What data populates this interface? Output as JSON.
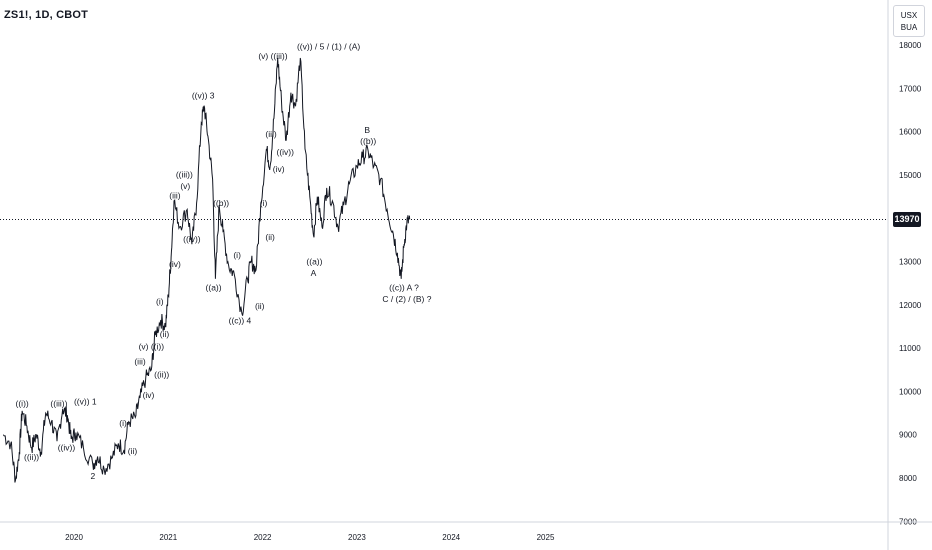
{
  "header": {
    "symbol": "ZS1!, 1D, CBOT"
  },
  "scale_box": {
    "line1": "USX",
    "line2": "BUA"
  },
  "last_price_label": "13970",
  "colors": {
    "price_line": "#131722",
    "crosshair": "#131722",
    "axis": "#d1d4dc",
    "tag_bg": "#131722"
  },
  "chart_data": {
    "type": "line",
    "title": "ZS1!, 1D, CBOT",
    "xlabel": "",
    "ylabel": "",
    "x_ticks": [
      {
        "label": "2020",
        "t": 2020.0
      },
      {
        "label": "2021",
        "t": 2021.0
      },
      {
        "label": "2022",
        "t": 2022.0
      },
      {
        "label": "2023",
        "t": 2023.0
      },
      {
        "label": "2024",
        "t": 2024.0
      },
      {
        "label": "2025",
        "t": 2025.0
      }
    ],
    "y_ticks": [
      {
        "label": "7000",
        "v": 7000
      },
      {
        "label": "8000",
        "v": 8000
      },
      {
        "label": "9000",
        "v": 9000
      },
      {
        "label": "10000",
        "v": 10000
      },
      {
        "label": "11000",
        "v": 11000
      },
      {
        "label": "12000",
        "v": 12000
      },
      {
        "label": "13000",
        "v": 13000
      },
      {
        "label": "14000",
        "v": 14000
      },
      {
        "label": "15000",
        "v": 15000
      },
      {
        "label": "16000",
        "v": 16000
      },
      {
        "label": "17000",
        "v": 17000
      },
      {
        "label": "18000",
        "v": 18000
      }
    ],
    "xlim": [
      2019.25,
      2025.8
    ],
    "ylim": [
      6900,
      18100
    ],
    "last_price": 13970,
    "series": [
      {
        "points": [
          [
            2019.25,
            9000
          ],
          [
            2019.33,
            8800
          ],
          [
            2019.38,
            7950
          ],
          [
            2019.42,
            8600
          ],
          [
            2019.45,
            9550
          ],
          [
            2019.5,
            9200
          ],
          [
            2019.55,
            8700
          ],
          [
            2019.6,
            9000
          ],
          [
            2019.65,
            8600
          ],
          [
            2019.7,
            9500
          ],
          [
            2019.76,
            9300
          ],
          [
            2019.82,
            8850
          ],
          [
            2019.88,
            9600
          ],
          [
            2019.93,
            9450
          ],
          [
            2019.97,
            8900
          ],
          [
            2020.02,
            9050
          ],
          [
            2020.1,
            8700
          ],
          [
            2020.2,
            8300
          ],
          [
            2020.25,
            8500
          ],
          [
            2020.32,
            8200
          ],
          [
            2020.4,
            8450
          ],
          [
            2020.47,
            8800
          ],
          [
            2020.53,
            8650
          ],
          [
            2020.58,
            9300
          ],
          [
            2020.65,
            9400
          ],
          [
            2020.7,
            9850
          ],
          [
            2020.76,
            10300
          ],
          [
            2020.82,
            10500
          ],
          [
            2020.86,
            11300
          ],
          [
            2020.92,
            11650
          ],
          [
            2020.97,
            11500
          ],
          [
            2021.0,
            12200
          ],
          [
            2021.03,
            13100
          ],
          [
            2021.06,
            14400
          ],
          [
            2021.12,
            13800
          ],
          [
            2021.2,
            14200
          ],
          [
            2021.25,
            13400
          ],
          [
            2021.3,
            14350
          ],
          [
            2021.35,
            16200
          ],
          [
            2021.38,
            16600
          ],
          [
            2021.42,
            15900
          ],
          [
            2021.47,
            14900
          ],
          [
            2021.5,
            12600
          ],
          [
            2021.54,
            14300
          ],
          [
            2021.58,
            13700
          ],
          [
            2021.64,
            12900
          ],
          [
            2021.7,
            12700
          ],
          [
            2021.78,
            11800
          ],
          [
            2021.84,
            12600
          ],
          [
            2021.88,
            13000
          ],
          [
            2021.93,
            12800
          ],
          [
            2021.98,
            14300
          ],
          [
            2022.04,
            15600
          ],
          [
            2022.08,
            15200
          ],
          [
            2022.12,
            16300
          ],
          [
            2022.16,
            17700
          ],
          [
            2022.2,
            16700
          ],
          [
            2022.25,
            15800
          ],
          [
            2022.3,
            16900
          ],
          [
            2022.35,
            16600
          ],
          [
            2022.4,
            17700
          ],
          [
            2022.45,
            15600
          ],
          [
            2022.5,
            14500
          ],
          [
            2022.54,
            13600
          ],
          [
            2022.58,
            14500
          ],
          [
            2022.63,
            13800
          ],
          [
            2022.68,
            14700
          ],
          [
            2022.74,
            14400
          ],
          [
            2022.8,
            13800
          ],
          [
            2022.86,
            14300
          ],
          [
            2022.92,
            14800
          ],
          [
            2023.0,
            15200
          ],
          [
            2023.06,
            15400
          ],
          [
            2023.12,
            15550
          ],
          [
            2023.18,
            15200
          ],
          [
            2023.25,
            14900
          ],
          [
            2023.32,
            14200
          ],
          [
            2023.38,
            13700
          ],
          [
            2023.43,
            13200
          ],
          [
            2023.47,
            12600
          ],
          [
            2023.5,
            13400
          ],
          [
            2023.53,
            13900
          ],
          [
            2023.56,
            13970
          ]
        ]
      }
    ],
    "annotations": [
      {
        "text": "((i))",
        "t": 2019.45,
        "v": 9650
      },
      {
        "text": "((ii))",
        "t": 2019.55,
        "v": 8420
      },
      {
        "text": "((iii))",
        "t": 2019.84,
        "v": 9650
      },
      {
        "text": "((iv))",
        "t": 2019.92,
        "v": 8640
      },
      {
        "text": "((v)) 1",
        "t": 2020.12,
        "v": 9700
      },
      {
        "text": "2",
        "t": 2020.2,
        "v": 7980
      },
      {
        "text": "(i)",
        "t": 2020.52,
        "v": 9200
      },
      {
        "text": "(ii)",
        "t": 2020.62,
        "v": 8560
      },
      {
        "text": "(iii)",
        "t": 2020.7,
        "v": 10620
      },
      {
        "text": "(iv)",
        "t": 2020.79,
        "v": 9850
      },
      {
        "text": "(v) ((i))",
        "t": 2020.82,
        "v": 10970
      },
      {
        "text": "((ii))",
        "t": 2020.93,
        "v": 10320
      },
      {
        "text": "(i)",
        "t": 2020.91,
        "v": 12010
      },
      {
        "text": "(ii)",
        "t": 2020.96,
        "v": 11260
      },
      {
        "text": "(iii)",
        "t": 2021.07,
        "v": 14460
      },
      {
        "text": "(iv)",
        "t": 2021.07,
        "v": 12870
      },
      {
        "text": "(v)",
        "t": 2021.18,
        "v": 14670
      },
      {
        "text": "((iii))",
        "t": 2021.17,
        "v": 14940
      },
      {
        "text": "((iv))",
        "t": 2021.25,
        "v": 13450
      },
      {
        "text": "((v)) 3",
        "t": 2021.37,
        "v": 16770
      },
      {
        "text": "((b))",
        "t": 2021.56,
        "v": 14280
      },
      {
        "text": "((a))",
        "t": 2021.48,
        "v": 12330
      },
      {
        "text": "(i)",
        "t": 2021.73,
        "v": 13080
      },
      {
        "text": "((c)) 4",
        "t": 2021.76,
        "v": 11570
      },
      {
        "text": "(ii)",
        "t": 2021.97,
        "v": 11900
      },
      {
        "text": "(i)",
        "t": 2022.01,
        "v": 14280
      },
      {
        "text": "(ii)",
        "t": 2022.08,
        "v": 13500
      },
      {
        "text": "(iii)",
        "t": 2022.09,
        "v": 15880
      },
      {
        "text": "(iv)",
        "t": 2022.17,
        "v": 15070
      },
      {
        "text": "((iv))",
        "t": 2022.24,
        "v": 15460
      },
      {
        "text": "(v) ((iii))",
        "t": 2022.11,
        "v": 17680
      },
      {
        "text": "((v)) / 5 / (1) / (A)",
        "t": 2022.7,
        "v": 17900
      },
      {
        "text": "((a))",
        "t": 2022.55,
        "v": 12930
      },
      {
        "text": "A",
        "t": 2022.54,
        "v": 12670
      },
      {
        "text": "B",
        "t": 2023.11,
        "v": 15970
      },
      {
        "text": "((b))",
        "t": 2023.12,
        "v": 15710
      },
      {
        "text": "((c)) A ?",
        "t": 2023.5,
        "v": 12330
      },
      {
        "text": "C / (2) / (B) ?",
        "t": 2023.53,
        "v": 12060
      }
    ]
  }
}
